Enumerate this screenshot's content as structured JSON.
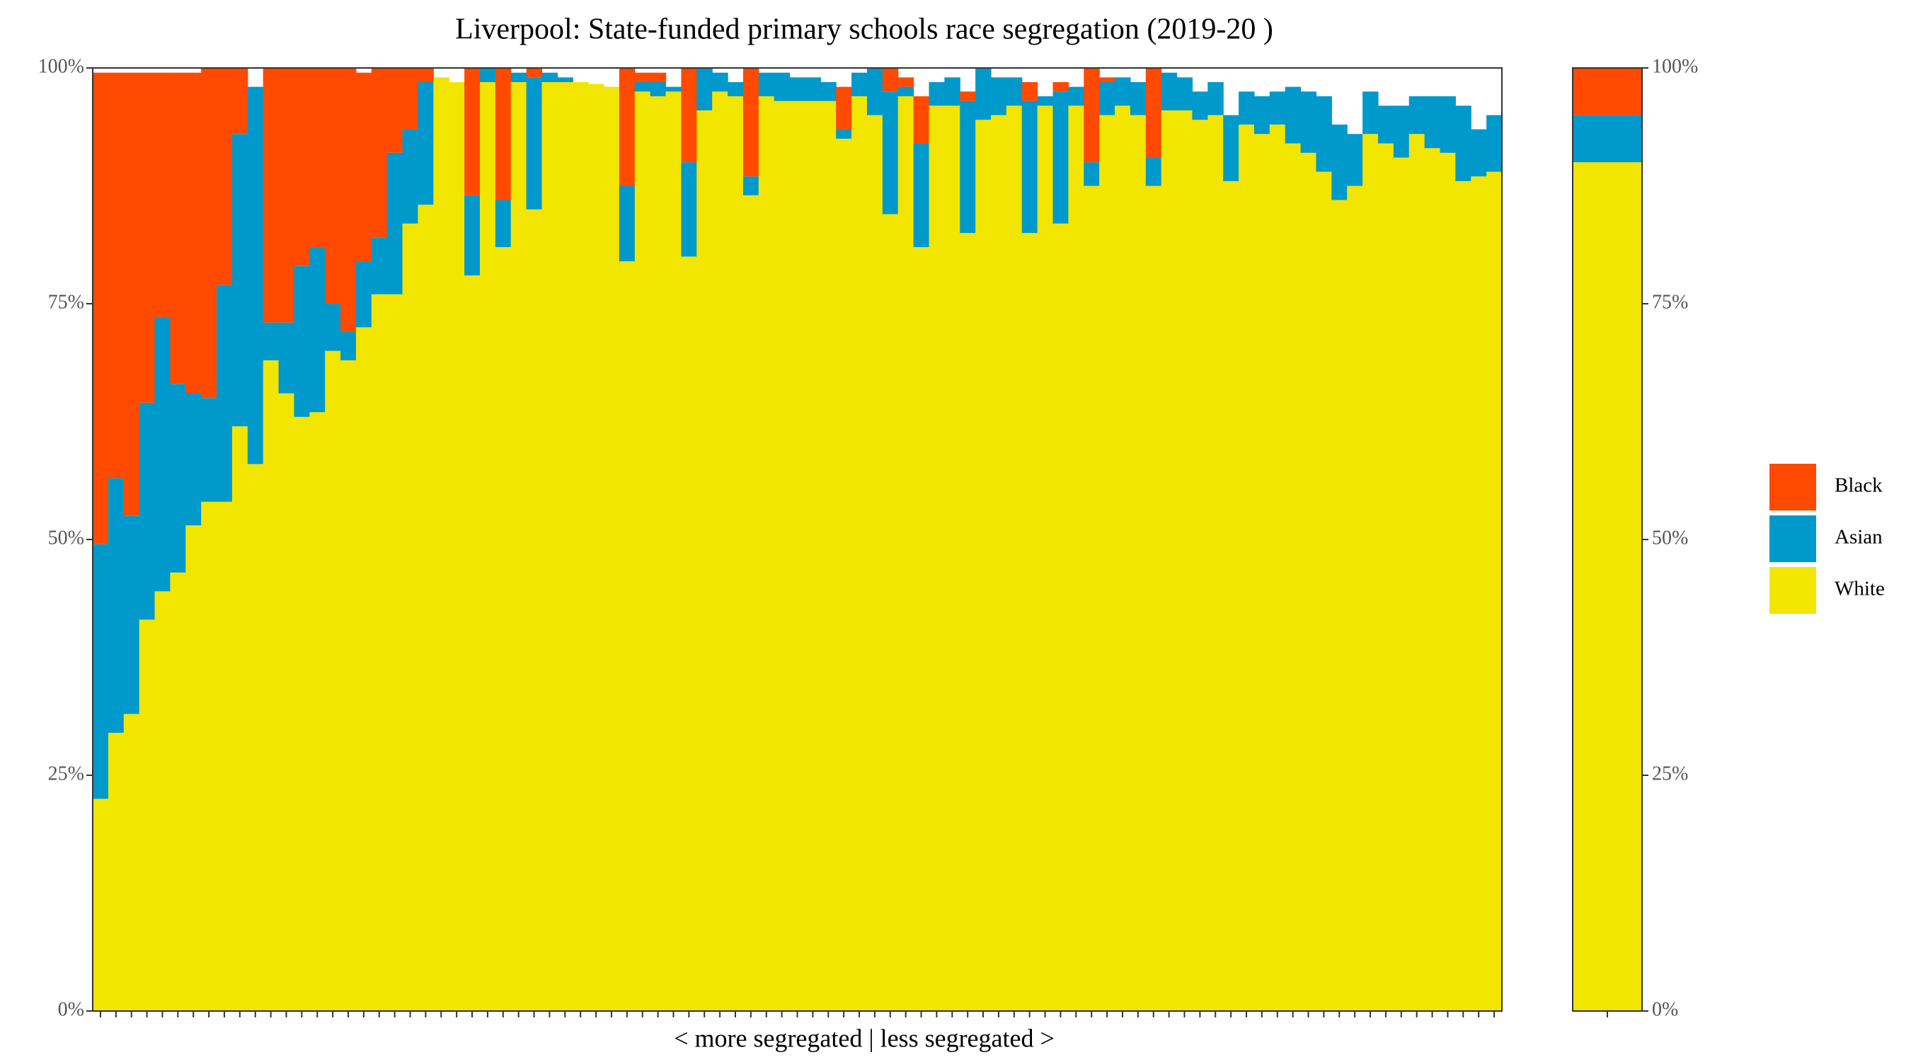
{
  "chart_data": [
    {
      "type": "stacked_bar_100",
      "title": "Liverpool: State-funded primary schools race segregation (2019-20 )",
      "xlabel": "< more segregated | less segregated >",
      "categories": [
        null,
        null,
        null,
        null,
        null,
        null,
        null,
        null,
        null,
        null,
        null,
        null,
        null,
        null,
        null,
        null,
        null,
        null,
        null,
        null,
        null,
        null,
        null,
        null,
        null,
        null,
        null,
        null,
        null,
        null,
        null,
        null,
        null,
        null,
        null,
        null,
        null,
        null,
        null,
        null,
        null,
        null,
        null,
        null,
        null,
        null,
        null,
        null,
        null,
        null,
        null,
        null,
        null,
        null,
        null,
        null,
        null,
        null,
        null,
        null,
        null,
        null,
        null,
        null,
        null,
        null,
        null,
        null,
        null,
        null,
        null,
        null,
        null,
        null,
        null,
        null,
        null,
        null,
        null,
        null,
        null,
        null,
        null,
        null,
        null,
        null,
        null,
        null,
        null,
        null,
        null
      ],
      "series": [
        {
          "name": "Black",
          "color": "#ff4a00",
          "values": [
            50,
            43,
            47,
            35,
            26,
            33,
            34,
            35,
            23,
            7,
            0,
            27,
            27,
            21,
            19,
            25,
            28,
            20,
            18,
            9,
            6.5,
            1.5,
            0,
            0,
            13.5,
            0,
            14,
            0,
            1,
            0,
            0,
            0,
            0,
            0,
            12.5,
            1,
            1,
            0,
            10,
            0,
            0,
            0,
            11.5,
            0,
            0,
            0,
            0,
            0,
            4.5,
            0,
            0,
            2.5,
            1,
            5,
            0,
            0,
            1,
            0,
            0,
            0,
            2,
            0,
            1,
            0,
            10,
            0.5,
            0,
            0,
            9.5,
            0,
            0,
            0,
            0,
            0,
            0,
            0,
            0,
            0,
            0,
            0,
            0,
            0,
            0,
            0,
            0,
            0,
            0,
            0,
            0,
            0,
            0
          ]
        },
        {
          "name": "Asian",
          "color": "#0099cc",
          "values": [
            27,
            27,
            21,
            23,
            29,
            20,
            14,
            11,
            23,
            31,
            40,
            4,
            7.5,
            16,
            17.5,
            5,
            3,
            7,
            6,
            15,
            10,
            13,
            0,
            0,
            8.5,
            1.5,
            5,
            1,
            14,
            1,
            0.5,
            0,
            0,
            0,
            8,
            1,
            1.5,
            0.5,
            10,
            4.5,
            2,
            1.5,
            2,
            2.5,
            3,
            2.5,
            2.5,
            2,
            1,
            2.5,
            5,
            13,
            1,
            11,
            2.5,
            3,
            14,
            5.5,
            4,
            3,
            14,
            1,
            14,
            2,
            2.5,
            3.5,
            3,
            3.5,
            3,
            4,
            3.5,
            3,
            3.5,
            7,
            3.5,
            4,
            3.5,
            6,
            6.5,
            8,
            8,
            5.5,
            4.5,
            4,
            5.5,
            4,
            5.5,
            6,
            8,
            5,
            6
          ]
        },
        {
          "name": "White",
          "color": "#f2e500",
          "values": [
            22.5,
            29.5,
            31.5,
            41.5,
            44.5,
            46.5,
            51.5,
            54,
            54,
            62,
            58,
            69,
            65.5,
            63,
            63.5,
            70,
            69,
            72.5,
            76,
            76,
            83.5,
            85.5,
            99,
            98.5,
            78,
            98.5,
            81,
            98.5,
            85,
            98.5,
            98.5,
            98.5,
            98.3,
            98,
            79.5,
            97.5,
            97,
            97.5,
            80,
            95.5,
            97.5,
            97,
            86.5,
            97,
            96.5,
            96.5,
            96.5,
            96.5,
            92.5,
            97,
            95,
            84.5,
            97,
            81,
            96,
            96,
            82.5,
            94.5,
            95,
            96,
            82.5,
            96,
            83.5,
            96,
            87.5,
            95,
            96,
            95,
            87.5,
            95.5,
            95.5,
            94.5,
            95,
            88,
            94,
            93,
            94,
            92,
            91,
            89,
            86,
            87.5,
            93,
            92,
            90.5,
            93,
            91.5,
            91,
            88,
            88.5,
            89
          ]
        }
      ],
      "ylim": [
        0,
        100
      ],
      "yticks": [
        {
          "value": 0,
          "label": "0%"
        },
        {
          "value": 25,
          "label": "25%"
        },
        {
          "value": 50,
          "label": "50%"
        },
        {
          "value": 75,
          "label": "75%"
        },
        {
          "value": 100,
          "label": "100%"
        }
      ]
    },
    {
      "type": "stacked_bar_100",
      "categories": [
        null
      ],
      "series": [
        {
          "name": "Black",
          "color": "#ff4a00",
          "values": [
            5
          ]
        },
        {
          "name": "Asian",
          "color": "#0099cc",
          "values": [
            5
          ]
        },
        {
          "name": "White",
          "color": "#f2e500",
          "values": [
            90
          ]
        }
      ],
      "ylim": [
        0,
        100
      ],
      "yticks": [
        {
          "value": 0,
          "label": "0%"
        },
        {
          "value": 25,
          "label": "25%"
        },
        {
          "value": 50,
          "label": "50%"
        },
        {
          "value": 75,
          "label": "75%"
        },
        {
          "value": 100,
          "label": "100%"
        }
      ]
    }
  ]
}
